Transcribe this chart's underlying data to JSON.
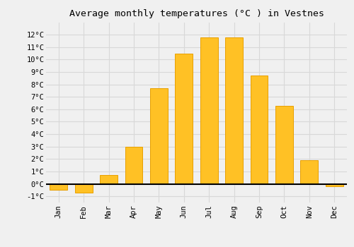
{
  "title": "Average monthly temperatures (°C ) in Vestnes",
  "months": [
    "Jan",
    "Feb",
    "Mar",
    "Apr",
    "May",
    "Jun",
    "Jul",
    "Aug",
    "Sep",
    "Oct",
    "Nov",
    "Dec"
  ],
  "values": [
    -0.5,
    -0.7,
    0.7,
    3.0,
    7.7,
    10.5,
    11.8,
    11.8,
    8.7,
    6.3,
    1.9,
    -0.2
  ],
  "bar_color": "#FFC125",
  "bar_edge_color": "#E8A000",
  "background_color": "#f0f0f0",
  "plot_bg_color": "#f0f0f0",
  "grid_color": "#d8d8d8",
  "ylim": [
    -1.5,
    13.0
  ],
  "yticks": [
    -1,
    0,
    1,
    2,
    3,
    4,
    5,
    6,
    7,
    8,
    9,
    10,
    11,
    12
  ],
  "title_fontsize": 9.5,
  "tick_fontsize": 7.5,
  "font_family": "monospace"
}
